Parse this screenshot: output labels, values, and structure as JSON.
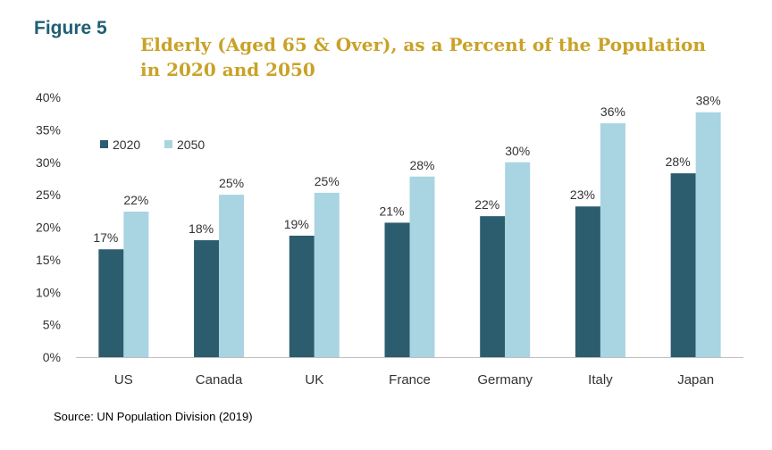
{
  "figure_label": "Figure 5",
  "source_note": "Source: UN Population Division (2019)",
  "colors": {
    "series_2020": "#2b5d6e",
    "series_2050": "#a9d4e1",
    "figure_label": "#1f5f73",
    "title": "#c9a227"
  },
  "chart_data": {
    "type": "bar",
    "title": "Elderly (Aged 65 & Over), as a Percent of the Population in 2020 and 2050",
    "title_lines": [
      "Elderly (Aged 65 & Over), as a Percent of the Population",
      "in 2020 and 2050"
    ],
    "xlabel": "",
    "ylabel": "",
    "categories": [
      "US",
      "Canada",
      "UK",
      "France",
      "Germany",
      "Italy",
      "Japan"
    ],
    "series": [
      {
        "name": "2020",
        "values": [
          16.6,
          18.0,
          18.7,
          20.7,
          21.7,
          23.2,
          28.3
        ],
        "labels": [
          "17%",
          "18%",
          "19%",
          "21%",
          "22%",
          "23%",
          "28%"
        ]
      },
      {
        "name": "2050",
        "values": [
          22.4,
          25.0,
          25.3,
          27.8,
          30.0,
          36.0,
          37.7
        ],
        "labels": [
          "22%",
          "25%",
          "25%",
          "28%",
          "30%",
          "36%",
          "38%"
        ]
      }
    ],
    "ylim": [
      0,
      40
    ],
    "yticks": [
      0,
      5,
      10,
      15,
      20,
      25,
      30,
      35,
      40
    ],
    "ytick_labels": [
      "0%",
      "5%",
      "10%",
      "15%",
      "20%",
      "25%",
      "30%",
      "35%",
      "40%"
    ],
    "grid": false,
    "legend_position": "top-left"
  }
}
